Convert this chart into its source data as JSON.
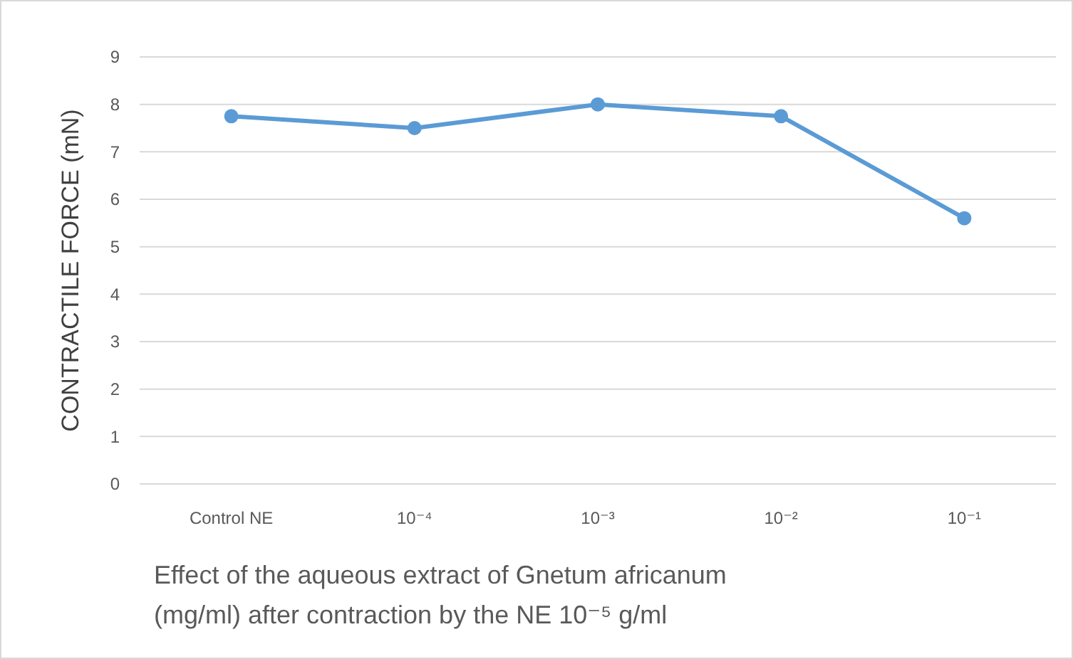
{
  "chart_data": {
    "type": "line",
    "ylabel": "CONTRACTILE FORCE (mN)",
    "xlabel": "Effect of the aqueous extract of Gnetum africanum (mg/ml) after contraction by the NE 10⁻⁵ g/ml",
    "categories": [
      "Control NE",
      "10⁻⁴",
      "10⁻³",
      "10⁻²",
      "10⁻¹"
    ],
    "series": [
      {
        "color": "#5b9bd5",
        "values": [
          7.75,
          7.5,
          8.0,
          7.75,
          5.6
        ]
      }
    ],
    "ylim": [
      0,
      9
    ],
    "yticks": [
      0,
      1,
      2,
      3,
      4,
      5,
      6,
      7,
      8,
      9
    ],
    "grid": "y",
    "marker": "circle",
    "line_style": "solid"
  }
}
